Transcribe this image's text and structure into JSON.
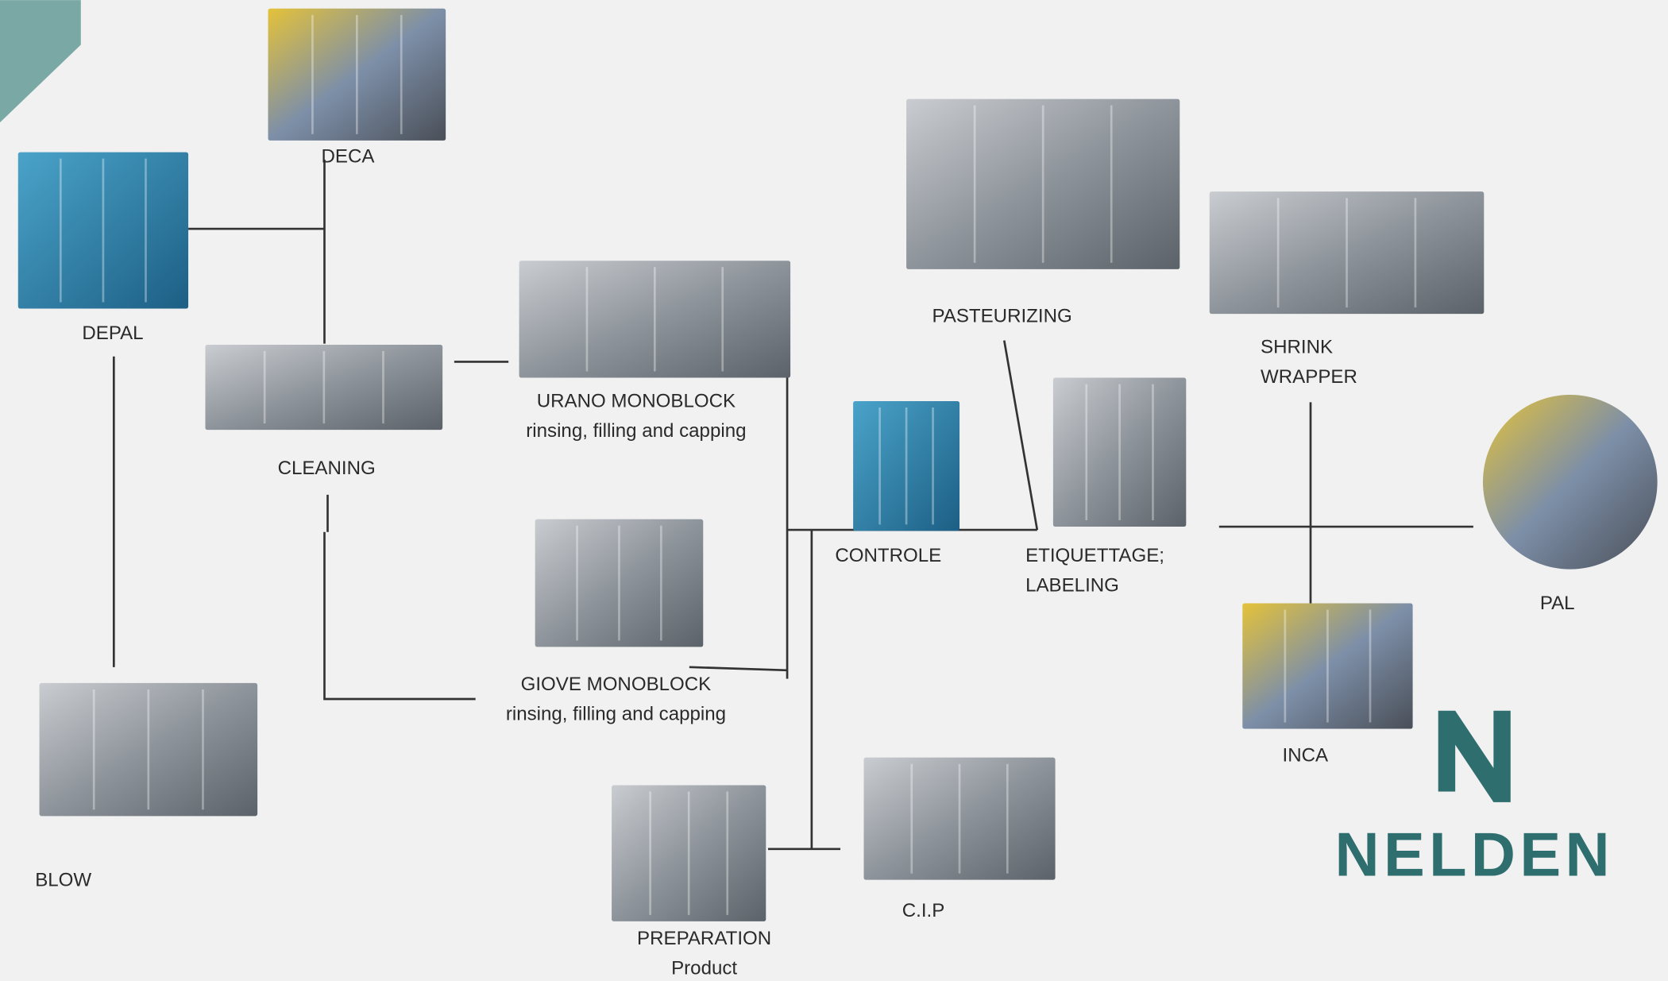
{
  "nodes": [
    {
      "label": "DECA"
    },
    {
      "label": "DEPAL"
    },
    {
      "label": "CLEANING"
    },
    {
      "label": "URANO MONOBLOCK",
      "sublabel": "rinsing, filling and capping"
    },
    {
      "label": "GIOVE MONOBLOCK",
      "sublabel": "rinsing, filling and capping"
    },
    {
      "label": "BLOW"
    },
    {
      "label": "PREPARATION",
      "sublabel": "Product"
    },
    {
      "label": "C.I.P"
    },
    {
      "label": "CONTROLE"
    },
    {
      "label": "PASTEURIZING"
    },
    {
      "label": "ETIQUETTAGE;",
      "sublabel": "LABELING"
    },
    {
      "label": "SHRINK",
      "sublabel": "WRAPPER"
    },
    {
      "label": "PAL"
    },
    {
      "label": "INCA"
    }
  ],
  "logo": {
    "text": "NELDEN"
  }
}
